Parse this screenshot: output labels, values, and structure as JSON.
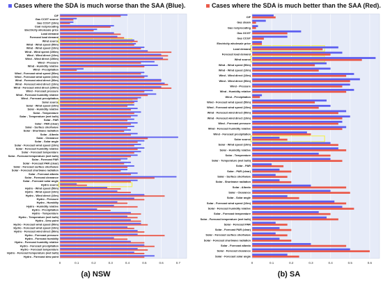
{
  "legend": {
    "blue_label": "Cases where the SDA is much worse than the SAA (Blue).",
    "red_label": "Cases where the SDA is much better than the SAA (Red).",
    "blue_color": "#5b5ef0",
    "red_color": "#ea5a4a"
  },
  "colors": {
    "plot_bg": "#e6ebf8",
    "highlight": "#f2f05a"
  },
  "captions": {
    "nsw": "(a) NSW",
    "sa": "(b) SA"
  },
  "chart_data": [
    {
      "type": "bar",
      "orientation": "horizontal",
      "title": "(a) NSW",
      "xlim": [
        0,
        0.75
      ],
      "xticks": [
        "0",
        "0.1",
        "0.2",
        "0.3",
        "0.4",
        "0.5",
        "0.6",
        "0.7"
      ],
      "grid": true,
      "highlighted_categories": [
        "Wind source",
        "Solar source",
        "Hydro source"
      ],
      "categories": [
        "CIF",
        "Gas CCGT source",
        "Gas CCGT (10m)",
        "Coal reciprocating",
        "Electricity wholesale price",
        "Load demand",
        "Forecast load demand",
        "Wind source",
        "Wind - Wind speed (50m)",
        "Wind - Wind speed (10m)",
        "Wind - Wind speed (150m)",
        "Wind - Wind direct (10m)",
        "Wind - Wind direct (150m)",
        "Wind - Pressure",
        "Wind - Humidity relative",
        "Wind - Precipitation",
        "Wind - Forecast wind speed (50m)",
        "Wind - Forecast wind speed (10m)",
        "Wind - Forecast wind direct (50m)",
        "Wind - Forecast wind direct (10m)",
        "Wind - Forecast wind direct (150m)",
        "Wind - Forecast pressure",
        "Wind - Forecast humidity relative",
        "Wind - Forecast precipitation",
        "Solar source",
        "Solar - Wind speed (10m)",
        "Solar - Humidity relative",
        "Solar - Temperature",
        "Solar - Temperature (wet bulb)",
        "Solar - PAR",
        "Solar - PAR (clear)",
        "Solar - Surface shortwave",
        "Solar - Shortwave radiation",
        "Solar - Albedo",
        "Solar - Clearance",
        "Solar - Solar angle",
        "Solar - Forecast wind speed (10m)",
        "Solar - Forecast humidity relative",
        "Solar - Forecast temperature",
        "Solar - Forecast temperature (wet bulb)",
        "Solar - Forecast PAR",
        "Solar - Forecast PAR (clear)",
        "Solar - Forecast surface shortwave",
        "Solar - Forecast shortwave radiation",
        "Solar - Forecast albedo",
        "Solar - Forecast clearance",
        "Solar - Forecast solar angle",
        "Hydro source",
        "Hydro - Wind speed (50m)",
        "Hydro - Wind speed (10m)",
        "Hydro - Wind direct (10m)",
        "Hydro - Pressure",
        "Hydro - Humidity",
        "Hydro - Humidity relative",
        "Hydro - Precipitation",
        "Hydro - Temperature",
        "Hydro - Temperature (wet bulb)",
        "Hydro - Dew point",
        "Hydro - Forecast wind speed (50m)",
        "Hydro - Forecast wind speed (10m)",
        "Hydro - Forecast wind direct (50m)",
        "Hydro - Forecast pressure",
        "Hydro - Forecast humidity",
        "Hydro - Forecast humidity relative",
        "Hydro - Forecast precipitation",
        "Hydro - Forecast temperature",
        "Hydro - Forecast temperature (wet bulb)",
        "Hydro - Forecast dew point"
      ],
      "series": [
        {
          "name": "Cases where the SDA is much worse than the SAA (Blue).",
          "color": "#5b5ef0",
          "values": [
            0.4,
            0.1,
            0.08,
            0.32,
            0.22,
            0.32,
            0.34,
            0.44,
            0.45,
            0.5,
            0.52,
            0.6,
            0.61,
            0.56,
            0.58,
            0.14,
            0.5,
            0.52,
            0.6,
            0.62,
            0.6,
            0.55,
            0.57,
            0.48,
            0.46,
            0.44,
            0.46,
            0.48,
            0.46,
            0.44,
            0.46,
            0.44,
            0.42,
            0.46,
            0.7,
            0.5,
            0.48,
            0.5,
            0.48,
            0.46,
            0.4,
            0.42,
            0.44,
            0.4,
            0.46,
            0.69,
            0.46,
            0.1,
            0.28,
            0.34,
            0.5,
            0.44,
            0.34,
            0.32,
            0.22,
            0.42,
            0.4,
            0.42,
            0.48,
            0.4,
            0.46,
            0.46,
            0.32,
            0.42,
            0.5,
            0.46,
            0.44,
            0.56
          ]
        },
        {
          "name": "Cases where the SDA is much better than the SAA (Red).",
          "color": "#ea5a4a",
          "values": [
            0.36,
            0.08,
            0.06,
            0.3,
            0.2,
            0.36,
            0.38,
            0.46,
            0.44,
            0.48,
            0.66,
            0.64,
            0.64,
            0.48,
            0.5,
            0.1,
            0.48,
            0.5,
            0.6,
            0.64,
            0.66,
            0.5,
            0.52,
            0.46,
            0.44,
            0.4,
            0.42,
            0.44,
            0.42,
            0.4,
            0.42,
            0.4,
            0.38,
            0.42,
            0.52,
            0.46,
            0.44,
            0.46,
            0.44,
            0.42,
            0.36,
            0.38,
            0.4,
            0.36,
            0.42,
            0.56,
            0.42,
            0.16,
            0.36,
            0.42,
            0.62,
            0.5,
            0.4,
            0.46,
            0.3,
            0.48,
            0.46,
            0.48,
            0.52,
            0.44,
            0.5,
            0.62,
            0.4,
            0.5,
            0.56,
            0.52,
            0.5,
            0.5
          ]
        }
      ]
    },
    {
      "type": "bar",
      "orientation": "horizontal",
      "title": "(b) SA",
      "xlim": [
        0,
        0.65
      ],
      "xticks": [
        "0",
        "0.1",
        "0.2",
        "0.3",
        "0.4",
        "0.5",
        "0.6"
      ],
      "grid": true,
      "highlighted_categories": [
        "Load demand",
        "Wind source",
        "Solar source"
      ],
      "categories": [
        "CIF",
        "Gas steam",
        "Gas reciprocating",
        "Gas OCGT",
        "Gas CCGT",
        "Electricity wholesale price",
        "Load demand",
        "Forecast load demand",
        "Wind source",
        "Wind - Wind speed (50m)",
        "Wind - Wind speed (10m)",
        "Wind - Wind direct (10m)",
        "Wind - Wind direct (50m)",
        "Wind - Pressure",
        "Wind - Humidity relative",
        "Wind - Precipitation",
        "Wind - Forecast wind speed (50m)",
        "Wind - Forecast wind speed (10m)",
        "Wind - Forecast wind direct (50m)",
        "Wind - Forecast wind direct (10m)",
        "Wind - Forecast pressure",
        "Wind - Forecast humidity relative",
        "Wind - Forecast precipitation",
        "Solar source",
        "Solar - Wind speed (10m)",
        "Solar - Humidity relative",
        "Solar - Temperature",
        "Solar - Temperature (wet bulb)",
        "Solar - PAR",
        "Solar - PAR (clear)",
        "Solar - Surface shortwave",
        "Solar - Shortwave radiation",
        "Solar - Albedo",
        "Solar - Clearance",
        "Solar - Solar angle",
        "Solar - Forecast wind speed (10m)",
        "Solar - Forecast humidity relative",
        "Solar - Forecast temperature",
        "Solar - Forecast temperature (wet bulb)",
        "Solar - Forecast PAR",
        "Solar - Forecast PAR (clear)",
        "Solar - Forecast surface shortwave",
        "Solar - Forecast shortwave radiation",
        "Solar - Forecast albedo",
        "Solar - Forecast clearance",
        "Solar - Forecast solar angle"
      ],
      "series": [
        {
          "name": "Cases where the SDA is much worse than the SAA (Blue).",
          "color": "#5b5ef0",
          "values": [
            0.11,
            0.07,
            0.03,
            0.25,
            0.18,
            0.05,
            0.44,
            0.46,
            0.63,
            0.38,
            0.4,
            0.52,
            0.55,
            0.5,
            0.52,
            0.05,
            0.38,
            0.4,
            0.48,
            0.5,
            0.46,
            0.48,
            0.28,
            0.14,
            0.4,
            0.44,
            0.34,
            0.4,
            0.1,
            0.14,
            0.12,
            0.14,
            0.3,
            0.4,
            0.18,
            0.42,
            0.46,
            0.34,
            0.38,
            0.12,
            0.14,
            0.12,
            0.14,
            0.3,
            0.5,
            0.18
          ]
        },
        {
          "name": "Cases where the SDA is much better than the SAA (Red).",
          "color": "#ea5a4a",
          "values": [
            0.12,
            0.02,
            0.02,
            0.18,
            0.06,
            0.05,
            0.36,
            0.4,
            0.56,
            0.32,
            0.34,
            0.48,
            0.5,
            0.46,
            0.48,
            0.04,
            0.32,
            0.34,
            0.44,
            0.46,
            0.44,
            0.46,
            0.3,
            0.18,
            0.44,
            0.48,
            0.4,
            0.46,
            0.16,
            0.2,
            0.18,
            0.2,
            0.48,
            0.5,
            0.24,
            0.48,
            0.52,
            0.4,
            0.44,
            0.18,
            0.2,
            0.18,
            0.2,
            0.48,
            0.6,
            0.24
          ]
        }
      ]
    }
  ]
}
